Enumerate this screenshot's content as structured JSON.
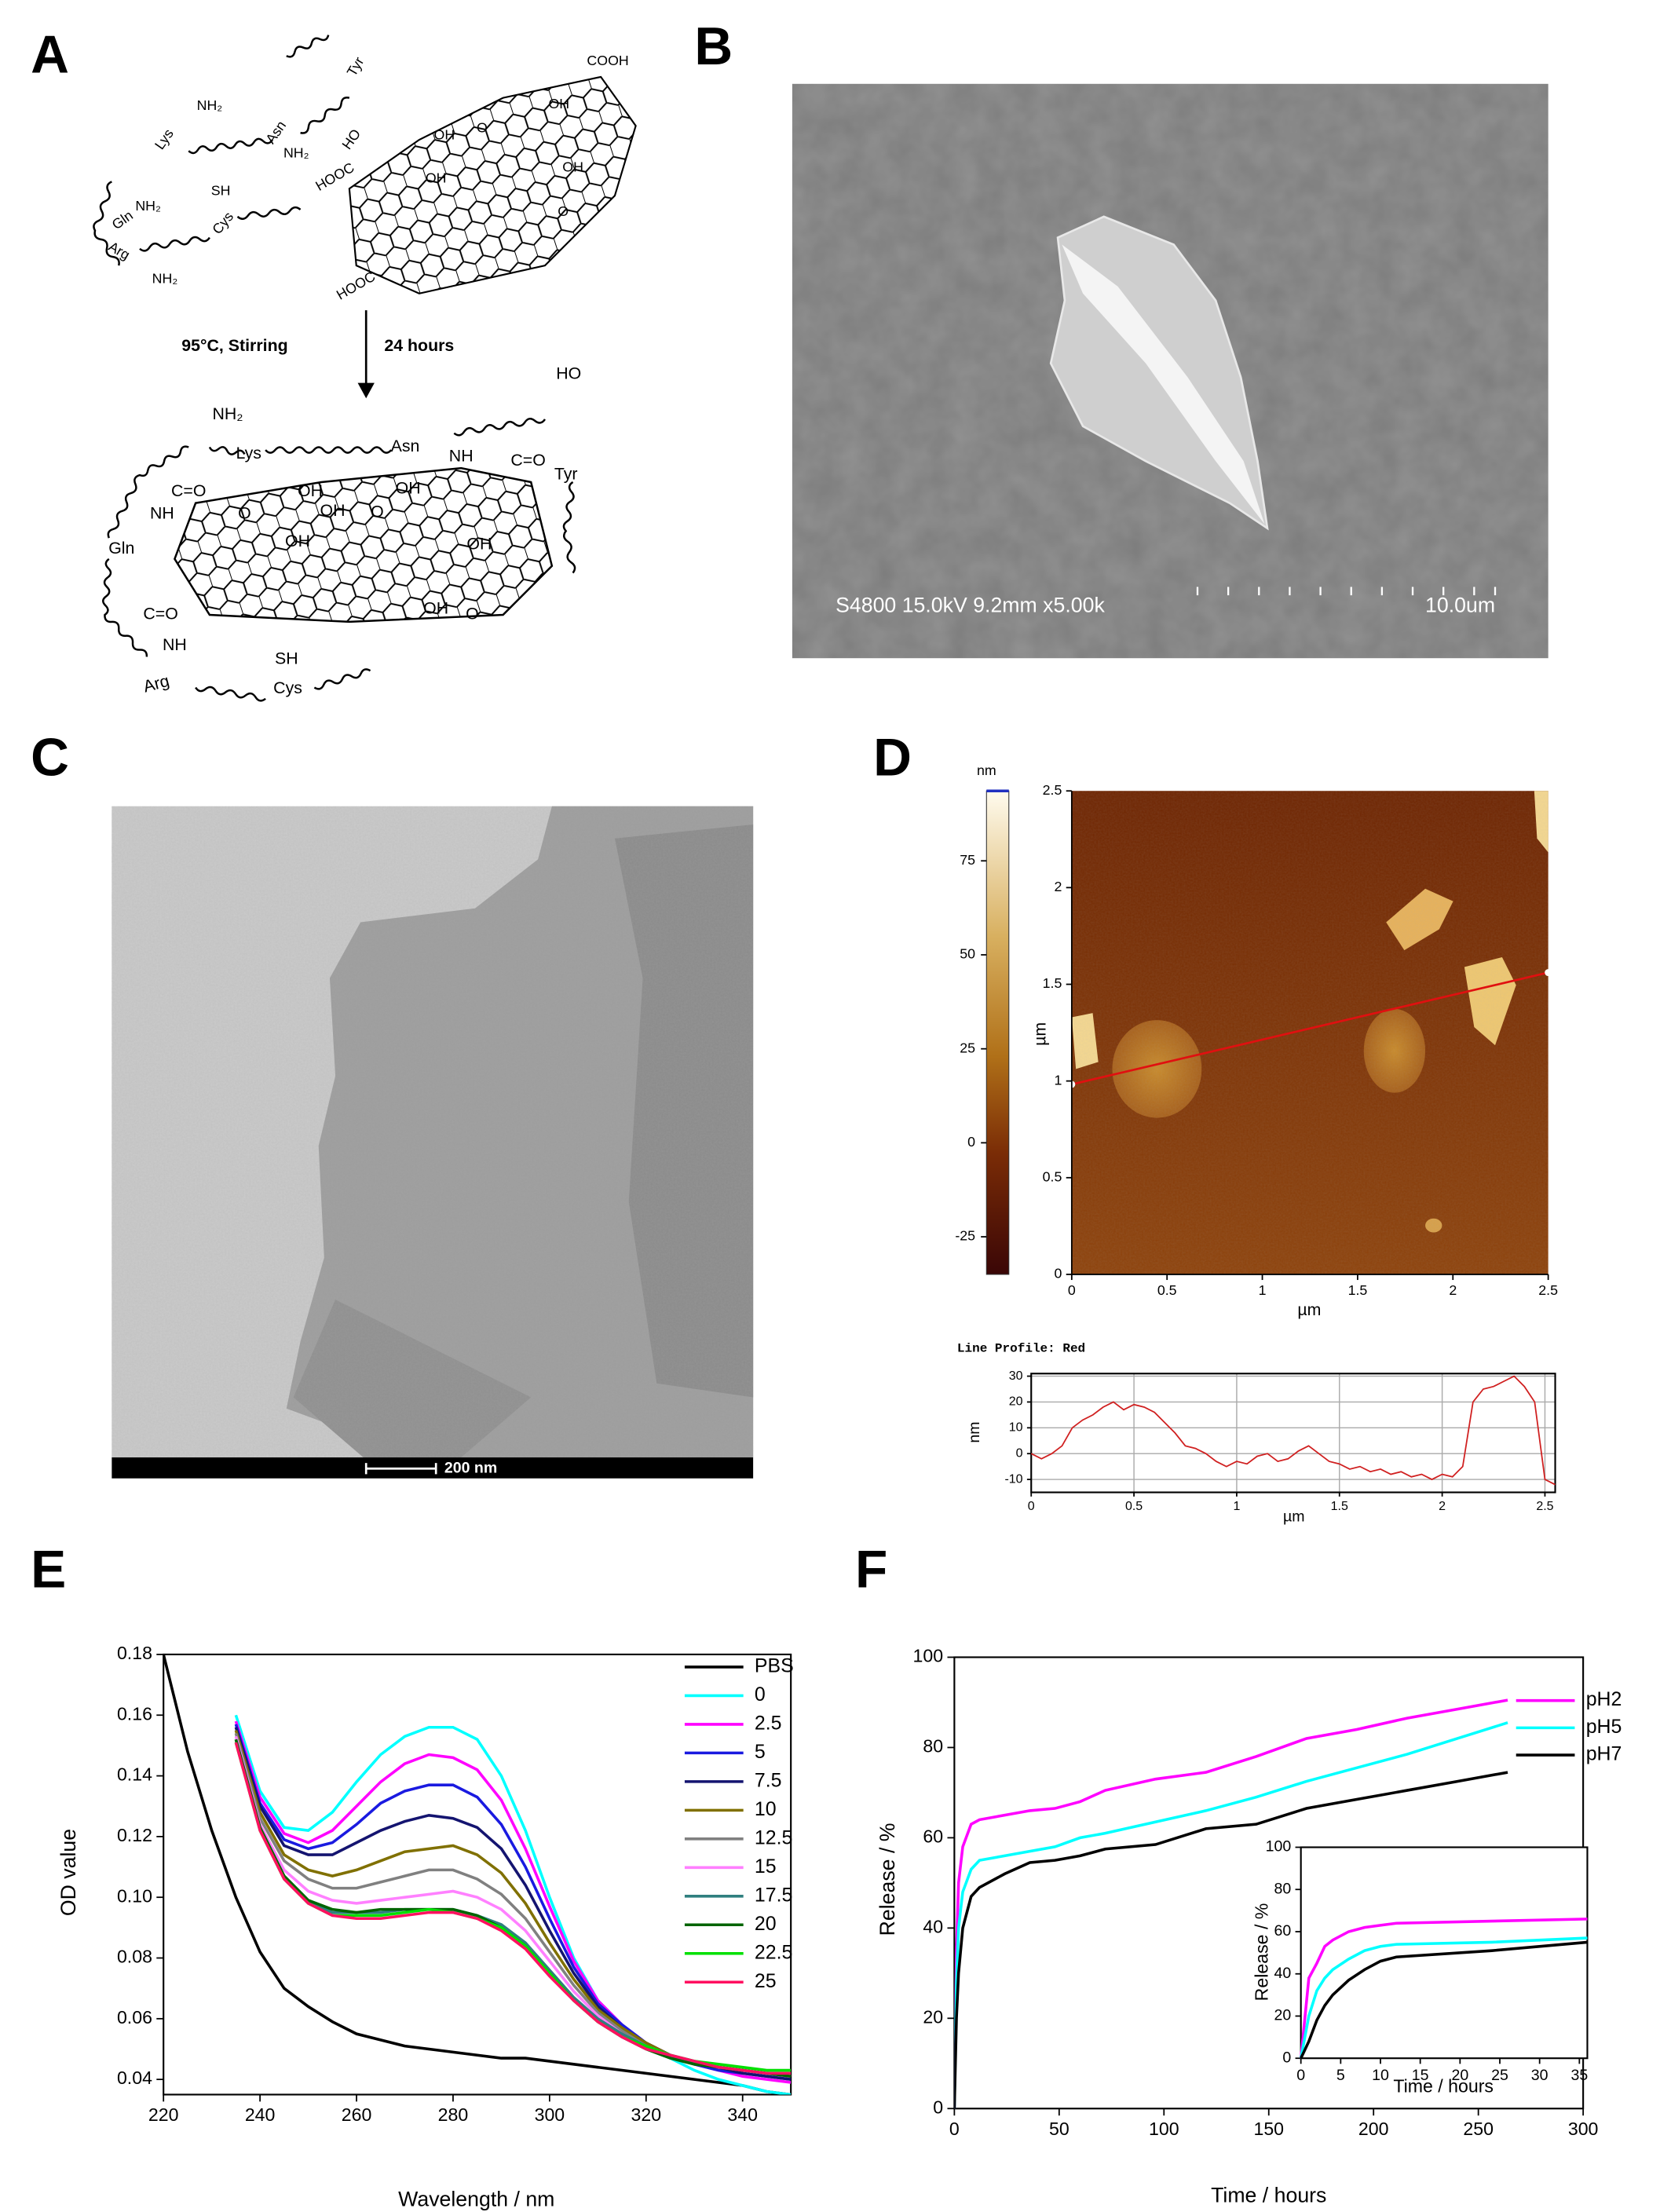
{
  "panel_labels": [
    "A",
    "B",
    "C",
    "D",
    "E",
    "F"
  ],
  "panel_a": {
    "condition_left": "95°C, Stirring",
    "condition_right": "24 hours",
    "top_labels": [
      "NH₂",
      "Lys",
      "Asn",
      "NH₂",
      "Tyr",
      "HO",
      "Gln",
      "NH₂",
      "SH",
      "Cys",
      "Arg",
      "NH₂",
      "COOH",
      "HOOC",
      "HOOC",
      "OH",
      "O",
      "OH",
      "OH",
      "OH",
      "O"
    ],
    "bottom_labels": [
      "HO",
      "NH₂",
      "Lys",
      "Asn",
      "NH",
      "C=O",
      "Tyr",
      "C=O",
      "NH",
      "Gln",
      "O",
      "OH",
      "OH",
      "O",
      "OH",
      "OH",
      "OH",
      "C=O",
      "NH",
      "Arg",
      "SH",
      "Cys",
      "OH",
      "O"
    ]
  },
  "panel_b": {
    "info": "S4800 15.0kV 9.2mm x5.00k",
    "scale_bar": "10.0um"
  },
  "panel_c": {
    "scale_bar": "200 nm"
  },
  "chart_data": [
    {
      "type": "image",
      "colorbar_title": "nm",
      "colorbar_lim": [
        -35,
        93.6
      ],
      "colorbar_ticks": [
        75,
        50,
        25,
        0,
        -25
      ],
      "xlim": [
        0,
        2.5
      ],
      "xticks": [
        0,
        0.5,
        1,
        1.5,
        2,
        2.5
      ],
      "ylim": [
        0,
        2.5
      ],
      "yticks": [
        0,
        0.5,
        1,
        1.5,
        2,
        2.5
      ],
      "xlabel": "µm",
      "ylabel": "µm"
    },
    {
      "type": "line",
      "title": "Line Profile: Red",
      "grid": true,
      "x": [
        0,
        0.05,
        0.1,
        0.15,
        0.2,
        0.25,
        0.3,
        0.35,
        0.4,
        0.45,
        0.5,
        0.55,
        0.6,
        0.65,
        0.7,
        0.75,
        0.8,
        0.85,
        0.9,
        0.95,
        1.0,
        1.05,
        1.1,
        1.15,
        1.2,
        1.25,
        1.3,
        1.35,
        1.4,
        1.45,
        1.5,
        1.55,
        1.6,
        1.65,
        1.7,
        1.75,
        1.8,
        1.85,
        1.9,
        1.95,
        2.0,
        2.05,
        2.1,
        2.15,
        2.2,
        2.25,
        2.3,
        2.35,
        2.4,
        2.45,
        2.5,
        2.55
      ],
      "series": [
        {
          "color": "#d02020",
          "values": [
            0,
            -2,
            0,
            3,
            10,
            13,
            15,
            18,
            20,
            17,
            19,
            18,
            16,
            12,
            8,
            3,
            2,
            0,
            -3,
            -5,
            -3,
            -4,
            -1,
            0,
            -3,
            -2,
            1,
            3,
            0,
            -3,
            -4,
            -6,
            -5,
            -7,
            -6,
            -8,
            -7,
            -9,
            -8,
            -10,
            -8,
            -9,
            -5,
            20,
            25,
            26,
            28,
            30,
            26,
            20,
            -10,
            -12
          ]
        }
      ],
      "xlim": [
        0,
        2.55
      ],
      "xticks": [
        0,
        0.5,
        1,
        1.5,
        2,
        2.5
      ],
      "ylim": [
        -15,
        31
      ],
      "yticks": [
        30,
        20,
        10,
        0,
        -10
      ],
      "xlabel": "µm",
      "ylabel": "nm"
    },
    {
      "type": "line",
      "legend": "right",
      "xlabel": "Wavelength / nm",
      "ylabel": "OD value",
      "xlim": [
        220,
        350
      ],
      "xticks": [
        220,
        240,
        260,
        280,
        300,
        320,
        340
      ],
      "ylim": [
        0.035,
        0.18
      ],
      "yticks": [
        0.04,
        0.06,
        0.08,
        {
          "value": 0.1,
          "label": "0.10"
        },
        0.12,
        0.14,
        0.16,
        0.18
      ],
      "x": [
        220,
        225,
        230,
        235,
        240,
        245,
        250,
        255,
        260,
        265,
        270,
        275,
        280,
        285,
        290,
        295,
        300,
        305,
        310,
        315,
        320,
        325,
        330,
        335,
        340,
        345,
        350
      ],
      "series": [
        {
          "name": "PBS",
          "color": "#000000",
          "values": [
            0.18,
            0.148,
            0.122,
            0.1,
            0.082,
            0.07,
            0.064,
            0.059,
            0.055,
            0.053,
            0.051,
            0.05,
            0.049,
            0.048,
            0.047,
            0.047,
            0.046,
            0.045,
            0.044,
            0.043,
            0.042,
            0.041,
            0.04,
            0.039,
            0.038,
            0.036,
            0.035
          ]
        },
        {
          "name": "0",
          "color": "#00ffff",
          "values": [
            null,
            null,
            null,
            0.16,
            0.135,
            0.123,
            0.122,
            0.128,
            0.138,
            0.147,
            0.153,
            0.156,
            0.156,
            0.152,
            0.14,
            0.122,
            0.1,
            0.08,
            0.066,
            0.058,
            0.052,
            0.047,
            0.043,
            0.04,
            0.038,
            0.036,
            0.035
          ]
        },
        {
          "name": "2.5",
          "color": "#ff00ff",
          "values": [
            null,
            null,
            null,
            0.158,
            0.133,
            0.121,
            0.118,
            0.122,
            0.13,
            0.138,
            0.144,
            0.147,
            0.146,
            0.142,
            0.132,
            0.116,
            0.097,
            0.079,
            0.066,
            0.058,
            0.052,
            0.048,
            0.045,
            0.043,
            0.041,
            0.04,
            0.039
          ]
        },
        {
          "name": "5",
          "color": "#1a1ae0",
          "values": [
            null,
            null,
            null,
            0.157,
            0.131,
            0.119,
            0.116,
            0.118,
            0.124,
            0.131,
            0.135,
            0.137,
            0.137,
            0.133,
            0.124,
            0.11,
            0.093,
            0.077,
            0.065,
            0.058,
            0.052,
            0.048,
            0.045,
            0.043,
            0.042,
            0.041,
            0.04
          ]
        },
        {
          "name": "7.5",
          "color": "#141470",
          "values": [
            null,
            null,
            null,
            0.156,
            0.13,
            0.117,
            0.114,
            0.114,
            0.118,
            0.122,
            0.125,
            0.127,
            0.126,
            0.123,
            0.116,
            0.104,
            0.089,
            0.075,
            0.064,
            0.057,
            0.052,
            0.048,
            0.046,
            0.044,
            0.042,
            0.041,
            0.04
          ]
        },
        {
          "name": "10",
          "color": "#807000",
          "values": [
            null,
            null,
            null,
            0.155,
            0.128,
            0.114,
            0.109,
            0.107,
            0.109,
            0.112,
            0.115,
            0.116,
            0.117,
            0.114,
            0.108,
            0.098,
            0.085,
            0.073,
            0.063,
            0.057,
            0.052,
            0.048,
            0.046,
            0.044,
            0.043,
            0.042,
            0.041
          ]
        },
        {
          "name": "12.5",
          "color": "#808080",
          "values": [
            null,
            null,
            null,
            0.154,
            0.126,
            0.112,
            0.106,
            0.103,
            0.103,
            0.105,
            0.107,
            0.109,
            0.109,
            0.106,
            0.101,
            0.093,
            0.082,
            0.071,
            0.062,
            0.056,
            0.051,
            0.048,
            0.046,
            0.044,
            0.043,
            0.042,
            0.041
          ]
        },
        {
          "name": "15",
          "color": "#ff80ff",
          "values": [
            null,
            null,
            null,
            0.153,
            0.124,
            0.109,
            0.102,
            0.099,
            0.098,
            0.099,
            0.1,
            0.101,
            0.102,
            0.1,
            0.096,
            0.089,
            0.079,
            0.069,
            0.061,
            0.055,
            0.051,
            0.048,
            0.046,
            0.044,
            0.043,
            0.042,
            0.041
          ]
        },
        {
          "name": "17.5",
          "color": "#2f7f7f",
          "values": [
            null,
            null,
            null,
            0.152,
            0.123,
            0.107,
            0.099,
            0.095,
            0.095,
            0.095,
            0.096,
            0.096,
            0.096,
            0.094,
            0.091,
            0.085,
            0.076,
            0.067,
            0.06,
            0.055,
            0.051,
            0.048,
            0.046,
            0.044,
            0.043,
            0.042,
            0.042
          ]
        },
        {
          "name": "20",
          "color": "#006400",
          "values": [
            null,
            null,
            null,
            0.152,
            0.123,
            0.107,
            0.099,
            0.096,
            0.095,
            0.096,
            0.096,
            0.096,
            0.096,
            0.094,
            0.09,
            0.084,
            0.075,
            0.066,
            0.059,
            0.054,
            0.05,
            0.047,
            0.045,
            0.044,
            0.043,
            0.042,
            0.041
          ]
        },
        {
          "name": "22.5",
          "color": "#00e000",
          "values": [
            null,
            null,
            null,
            0.151,
            0.122,
            0.106,
            0.098,
            0.094,
            0.094,
            0.094,
            0.095,
            0.096,
            0.095,
            0.093,
            0.09,
            0.084,
            0.075,
            0.066,
            0.059,
            0.054,
            0.051,
            0.048,
            0.046,
            0.045,
            0.044,
            0.043,
            0.043
          ]
        },
        {
          "name": "25",
          "color": "#ff1060",
          "values": [
            null,
            null,
            null,
            0.151,
            0.122,
            0.106,
            0.098,
            0.094,
            0.093,
            0.093,
            0.094,
            0.095,
            0.095,
            0.093,
            0.089,
            0.083,
            0.074,
            0.066,
            0.059,
            0.054,
            0.05,
            0.048,
            0.046,
            0.044,
            0.043,
            0.042,
            0.042
          ]
        }
      ]
    },
    {
      "type": "line",
      "legend": "top-right",
      "xlabel": "Time / hours",
      "ylabel": "Release / %",
      "xlim": [
        0,
        300
      ],
      "xticks": [
        0,
        50,
        100,
        150,
        200,
        250,
        300
      ],
      "ylim": [
        0,
        100
      ],
      "yticks": [
        0,
        20,
        40,
        60,
        80,
        100
      ],
      "x": [
        0,
        1,
        2,
        4,
        8,
        12,
        24,
        36,
        48,
        60,
        72,
        96,
        120,
        144,
        168,
        192,
        216,
        240,
        264
      ],
      "series": [
        {
          "name": "pH2",
          "color": "#ff00ff",
          "values": [
            0,
            35,
            50,
            58,
            63,
            64,
            65,
            66,
            66.5,
            68,
            70.5,
            73,
            74.5,
            78,
            82,
            84,
            86.5,
            88.5,
            90.5
          ]
        },
        {
          "name": "pH5",
          "color": "#00ffff",
          "values": [
            0,
            28,
            40,
            48,
            53,
            55,
            56,
            57,
            58,
            60,
            61,
            63.5,
            66,
            69,
            72.5,
            75.5,
            78.5,
            82,
            85.5
          ]
        },
        {
          "name": "pH7",
          "color": "#000000",
          "values": [
            0,
            20,
            30,
            40,
            47,
            49,
            52,
            54.5,
            55,
            56,
            57.5,
            58.5,
            62,
            63,
            66.5,
            68.5,
            70.5,
            72.5,
            74.5
          ]
        }
      ]
    },
    {
      "type": "line",
      "xlabel": "Time / hours",
      "ylabel": "Release / %",
      "xlim": [
        0,
        36
      ],
      "xticks": [
        0,
        5,
        10,
        15,
        20,
        25,
        30,
        35
      ],
      "ylim": [
        0,
        100
      ],
      "yticks": [
        0,
        20,
        40,
        60,
        80,
        100
      ],
      "x": [
        0,
        1,
        2,
        3,
        4,
        6,
        8,
        10,
        12,
        24,
        36
      ],
      "series": [
        {
          "color": "#ff00ff",
          "values": [
            0,
            38,
            45,
            53,
            56,
            60,
            62,
            63,
            64,
            65,
            66
          ]
        },
        {
          "color": "#00ffff",
          "values": [
            0,
            20,
            32,
            38,
            42,
            47,
            51,
            53,
            54,
            55,
            57
          ]
        },
        {
          "color": "#000000",
          "values": [
            0,
            8,
            18,
            25,
            30,
            37,
            42,
            46,
            48,
            51,
            55
          ]
        }
      ]
    }
  ]
}
